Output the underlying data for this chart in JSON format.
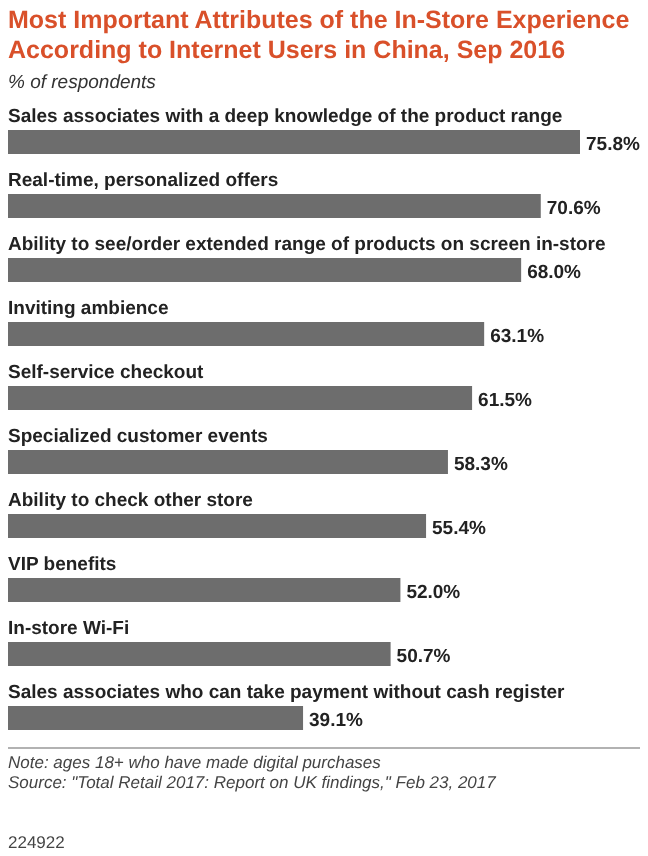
{
  "chart_data": {
    "type": "bar",
    "orientation": "horizontal",
    "title": "Most Important Attributes of the In-Store Experience According to Internet Users in China, Sep 2016",
    "subtitle": "% of respondents",
    "categories": [
      "Sales associates with a deep knowledge of the product range",
      "Real-time, personalized offers",
      "Ability to see/order extended range of products on screen in-store",
      "Inviting ambience",
      "Self-service checkout",
      "Specialized customer events",
      "Ability to check other store",
      "VIP benefits",
      "In-store Wi-Fi",
      "Sales associates who can take payment without cash register"
    ],
    "values": [
      75.8,
      70.6,
      68.0,
      63.1,
      61.5,
      58.3,
      55.4,
      52.0,
      50.7,
      39.1
    ],
    "value_labels": [
      "75.8%",
      "70.6%",
      "68.0%",
      "63.1%",
      "61.5%",
      "58.3%",
      "55.4%",
      "52.0%",
      "50.7%",
      "39.1%"
    ],
    "color": "#6d6d6d",
    "annotations": [
      "Note: ages 18+ who have made digital purchases",
      "Source: \"Total Retail 2017: Report on UK findings,\" Feb 23, 2017",
      "224922"
    ]
  }
}
